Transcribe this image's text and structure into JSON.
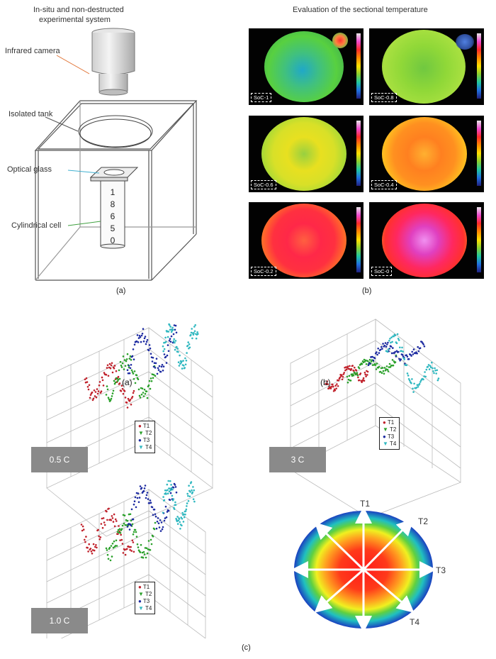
{
  "panel_a": {
    "title_line1": "In-situ and non-destructed",
    "title_line2": "experimental system",
    "labels": {
      "camera": "Infrared camera",
      "tank": "Isolated tank",
      "glass": "Optical glass",
      "cell": "Cylindrical cell"
    },
    "cell_digits": [
      "1",
      "8",
      "6",
      "5",
      "0"
    ],
    "caption": "(a)"
  },
  "panel_b": {
    "title": "Evaluation of the sectional temperature",
    "images": [
      {
        "label": "SoC-1"
      },
      {
        "label": "SoC-0.8"
      },
      {
        "label": "SoC-0.6"
      },
      {
        "label": "SoC-0.4"
      },
      {
        "label": "SoC-0.2"
      },
      {
        "label": "SoC-0"
      }
    ],
    "caption": "(b)"
  },
  "panel_c": {
    "plots": [
      {
        "rate": "0.5 C",
        "inner_label": "(a)"
      },
      {
        "rate": "3 C",
        "inner_label": "(b)"
      },
      {
        "rate": "1.0 C",
        "inner_label": ""
      }
    ],
    "legend": [
      "T1",
      "T2",
      "T3",
      "T4"
    ],
    "series_colors": [
      "#c0202a",
      "#2aa02a",
      "#1c2aa0",
      "#30b8c0"
    ],
    "section_labels": [
      "T1",
      "T2",
      "T3",
      "T4"
    ],
    "caption": "(c)"
  }
}
